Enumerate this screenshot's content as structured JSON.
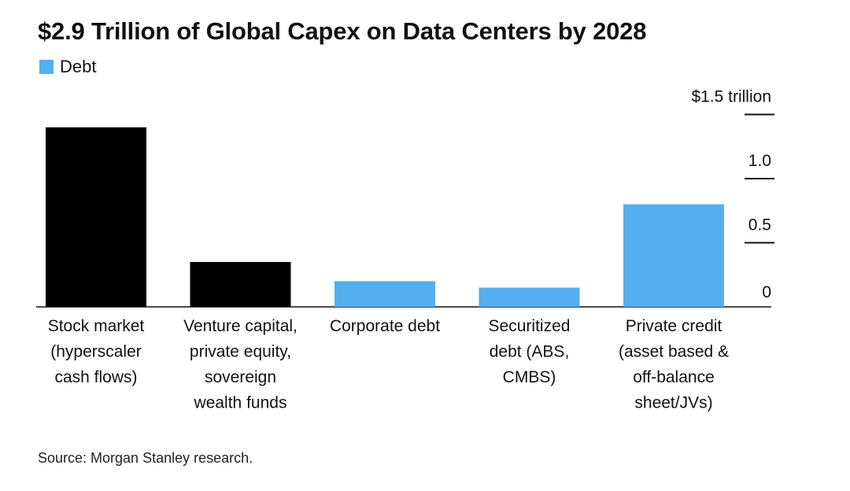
{
  "chart_data": {
    "type": "bar",
    "title": "$2.9 Trillion of Global Capex on Data Centers by 2028",
    "legend": [
      {
        "label": "Debt",
        "color": "#55aeee"
      }
    ],
    "categories": [
      "Stock market (hyperscaler cash flows)",
      "Venture capital, private equity, sovereign wealth funds",
      "Corporate debt",
      "Securitized debt (ABS, CMBS)",
      "Private credit (asset based & off-balance sheet/JVs)"
    ],
    "category_lines": [
      [
        "Stock market",
        "(hyperscaler",
        "cash flows)"
      ],
      [
        "Venture capital,",
        "private equity,",
        "sovereign",
        "wealth funds"
      ],
      [
        "Corporate debt"
      ],
      [
        "Securitized",
        "debt (ABS,",
        "CMBS)"
      ],
      [
        "Private credit",
        "(asset based &",
        "off-balance",
        "sheet/JVs)"
      ]
    ],
    "values": [
      1.4,
      0.35,
      0.2,
      0.15,
      0.8
    ],
    "is_debt": [
      false,
      false,
      true,
      true,
      true
    ],
    "colors": {
      "equity": "#000000",
      "debt": "#55aeee"
    },
    "ylim": [
      0,
      1.5
    ],
    "yticks": [
      {
        "value": 0,
        "label": "0"
      },
      {
        "value": 0.5,
        "label": "0.5"
      },
      {
        "value": 1.0,
        "label": "1.0"
      },
      {
        "value": 1.5,
        "label": "$1.5  trillion"
      }
    ],
    "xlabel": "",
    "ylabel": "",
    "source": "Source: Morgan Stanley research."
  }
}
